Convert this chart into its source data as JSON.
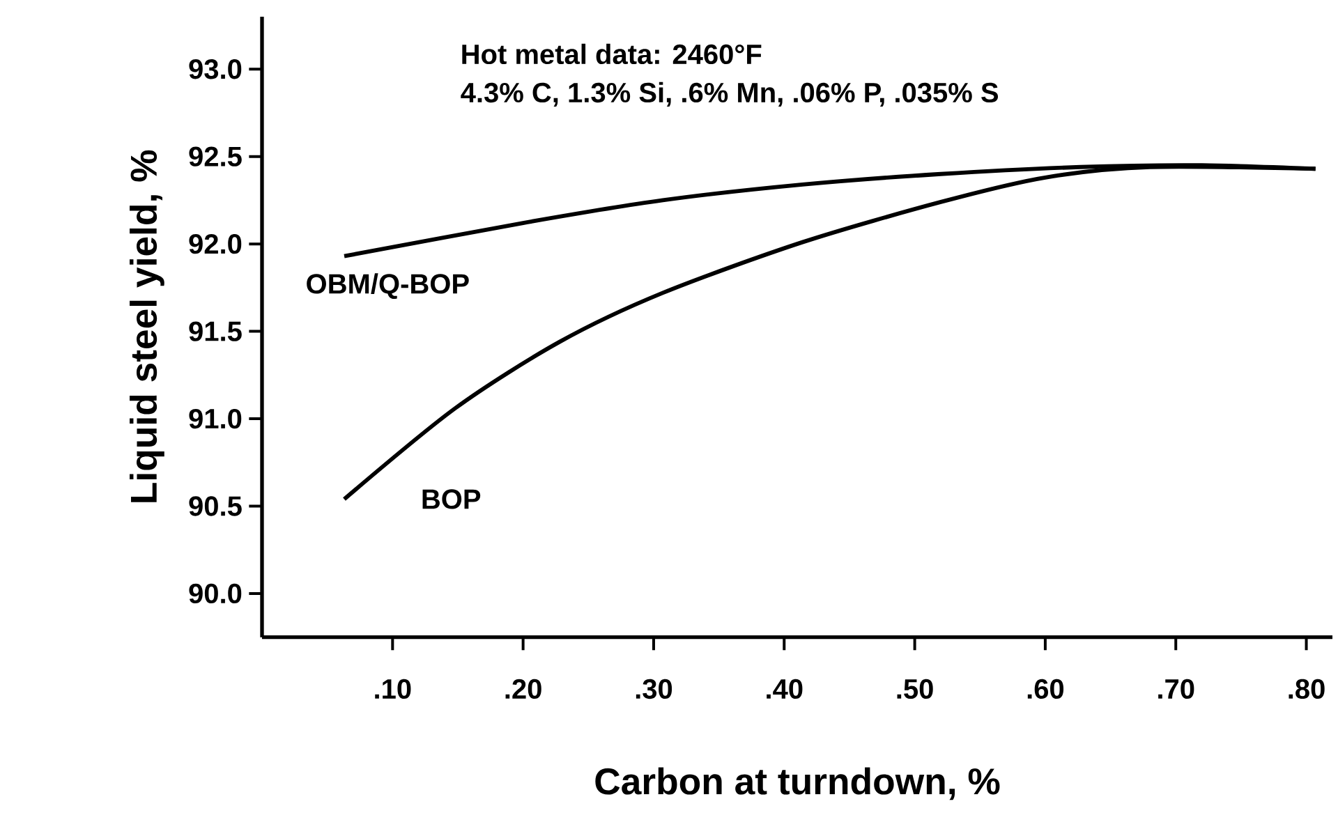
{
  "chart_data": {
    "type": "line",
    "xlabel": "Carbon at turndown, %",
    "ylabel": "Liquid steel yield, %",
    "annotations": [
      "Hot metal data: 2460°F",
      "4.3% C, 1.3% Si, .6% Mn, .06% P, .035% S"
    ],
    "xlim": [
      0,
      0.82
    ],
    "ylim": [
      89.75,
      93.3
    ],
    "xticks": [
      {
        "value": 0.1,
        "label": ".10"
      },
      {
        "value": 0.2,
        "label": ".20"
      },
      {
        "value": 0.3,
        "label": ".30"
      },
      {
        "value": 0.4,
        "label": ".40"
      },
      {
        "value": 0.5,
        "label": ".50"
      },
      {
        "value": 0.6,
        "label": ".60"
      },
      {
        "value": 0.7,
        "label": ".70"
      },
      {
        "value": 0.8,
        "label": ".80"
      }
    ],
    "yticks": [
      {
        "value": 90,
        "label": "90.0"
      },
      {
        "value": 90.5,
        "label": "90.5"
      },
      {
        "value": 91,
        "label": "91.0"
      },
      {
        "value": 91.5,
        "label": "91.5"
      },
      {
        "value": 92,
        "label": "92.0"
      },
      {
        "value": 92.5,
        "label": "92.5"
      },
      {
        "value": 93,
        "label": "93.0"
      }
    ],
    "series": [
      {
        "name": "OBM/Q-BOP",
        "color": "#000000",
        "x": [
          0.063,
          0.2,
          0.307,
          0.414,
          0.52,
          0.627,
          0.72,
          0.807
        ],
        "values": [
          91.93,
          92.12,
          92.25,
          92.34,
          92.4,
          92.44,
          92.45,
          92.43
        ]
      },
      {
        "name": "BOP",
        "color": "#000000",
        "x": [
          0.063,
          0.148,
          0.228,
          0.307,
          0.414,
          0.52,
          0.6,
          0.68,
          0.807
        ],
        "values": [
          90.54,
          91.06,
          91.44,
          91.72,
          92.01,
          92.24,
          92.38,
          92.44,
          92.43
        ]
      }
    ]
  }
}
